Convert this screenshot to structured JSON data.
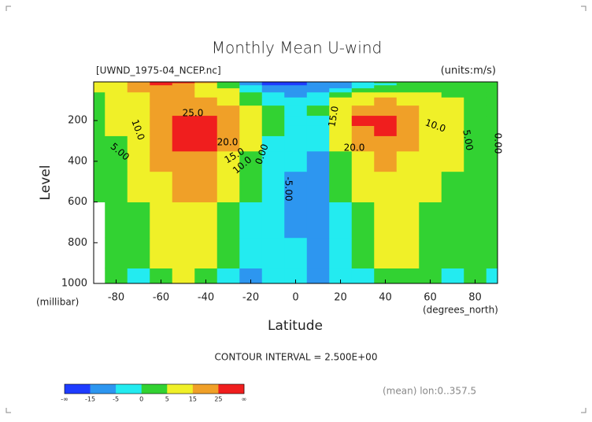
{
  "chart_data": {
    "type": "contour",
    "title": "Monthly Mean U-wind",
    "subtitle": "[UWND_1975-04_NCEP.nc]",
    "units": "(units:m/s)",
    "x_label": "Latitude",
    "x_unit": "(degrees_north)",
    "y_label": "Level",
    "y_unit": "(millibar)",
    "footer": "CONTOUR INTERVAL = 2.500E+00",
    "note": "(mean) lon:0..357.5",
    "xlim": [
      -90,
      90
    ],
    "xticks": [
      -80,
      -60,
      -40,
      -20,
      0,
      20,
      40,
      60,
      80
    ],
    "ylim": [
      1000,
      10
    ],
    "yticks": [
      200,
      400,
      600,
      800,
      1000
    ],
    "x": [
      -90,
      -80,
      -70,
      -60,
      -50,
      -40,
      -30,
      -20,
      -10,
      0,
      10,
      20,
      30,
      40,
      50,
      60,
      70,
      80,
      90
    ],
    "y": [
      1000,
      850,
      700,
      500,
      400,
      300,
      250,
      200,
      150,
      100,
      70,
      50,
      30,
      20,
      10
    ],
    "z": [
      [
        null,
        1,
        -1,
        4,
        8,
        4,
        -2,
        -6,
        -4,
        -4,
        -6,
        -3,
        -1,
        3,
        3,
        0,
        -1,
        1,
        -1
      ],
      [
        null,
        2,
        1,
        7,
        11,
        8,
        2,
        -4,
        -4,
        -5,
        -6,
        -3,
        1,
        5,
        5,
        2,
        0,
        1,
        0
      ],
      [
        null,
        2,
        3,
        9,
        14,
        11,
        4,
        -2,
        -3,
        -6,
        -6,
        -2,
        3,
        7,
        7,
        3,
        1,
        2,
        0
      ],
      [
        1,
        3,
        6,
        14,
        20,
        17,
        8,
        1,
        -3,
        -6,
        -6,
        0,
        8,
        13,
        11,
        6,
        3,
        3,
        1
      ],
      [
        1,
        4,
        8,
        17,
        24,
        22,
        12,
        3,
        -2,
        -5,
        -6,
        2,
        12,
        18,
        14,
        9,
        5,
        4,
        1
      ],
      [
        2,
        4,
        10,
        20,
        27,
        27,
        17,
        5,
        -1,
        -4,
        -5,
        5,
        20,
        24,
        18,
        11,
        6,
        4,
        1
      ],
      [
        2,
        5,
        11,
        21,
        28,
        28,
        20,
        6,
        0,
        -3,
        -3,
        7,
        24,
        27,
        20,
        12,
        7,
        4,
        1
      ],
      [
        2,
        5,
        11,
        22,
        27,
        27,
        22,
        8,
        1,
        -2,
        -1,
        9,
        26,
        29,
        20,
        12,
        7,
        4,
        1
      ],
      [
        3,
        6,
        12,
        22,
        24,
        22,
        19,
        7,
        0,
        -2,
        0,
        8,
        22,
        24,
        17,
        10,
        6,
        4,
        1
      ],
      [
        3,
        7,
        13,
        20,
        20,
        17,
        13,
        4,
        -2,
        -4,
        -2,
        5,
        14,
        15,
        12,
        8,
        5,
        3,
        1
      ],
      [
        4,
        8,
        14,
        19,
        17,
        13,
        8,
        1,
        -5,
        -6,
        -4,
        1,
        7,
        8,
        7,
        6,
        4,
        2,
        1
      ],
      [
        5,
        9,
        16,
        20,
        17,
        11,
        5,
        -2,
        -8,
        -9,
        -7,
        -3,
        2,
        3,
        4,
        4,
        3,
        2,
        1
      ],
      [
        6,
        11,
        20,
        24,
        21,
        12,
        3,
        -5,
        -12,
        -14,
        -10,
        -6,
        -2,
        0,
        2,
        3,
        2,
        2,
        1
      ],
      [
        7,
        12,
        22,
        26,
        24,
        14,
        3,
        -6,
        -16,
        -17,
        -12,
        -7,
        -3,
        -1,
        1,
        2,
        2,
        1,
        1
      ],
      [
        8,
        14,
        24,
        28,
        27,
        16,
        4,
        -8,
        -18,
        -18,
        -14,
        -8,
        -4,
        0,
        1,
        2,
        2,
        1,
        1
      ]
    ],
    "colorbar": {
      "levels": [
        -15,
        -5,
        0,
        5,
        15,
        25
      ],
      "colors": [
        "#1e3cff",
        "#2d96f0",
        "#23ebf0",
        "#32d232",
        "#f0f028",
        "#f0a028",
        "#f01e1e"
      ],
      "end_labels": [
        "-∞",
        "∞"
      ]
    },
    "contour_labels": [
      "25.0",
      "20.0",
      "15.0",
      "10.0",
      "5.00",
      "10.0",
      "0.00",
      "-5.00",
      "15.0",
      "20.0",
      "10.0",
      "5.00",
      "0.00"
    ]
  }
}
